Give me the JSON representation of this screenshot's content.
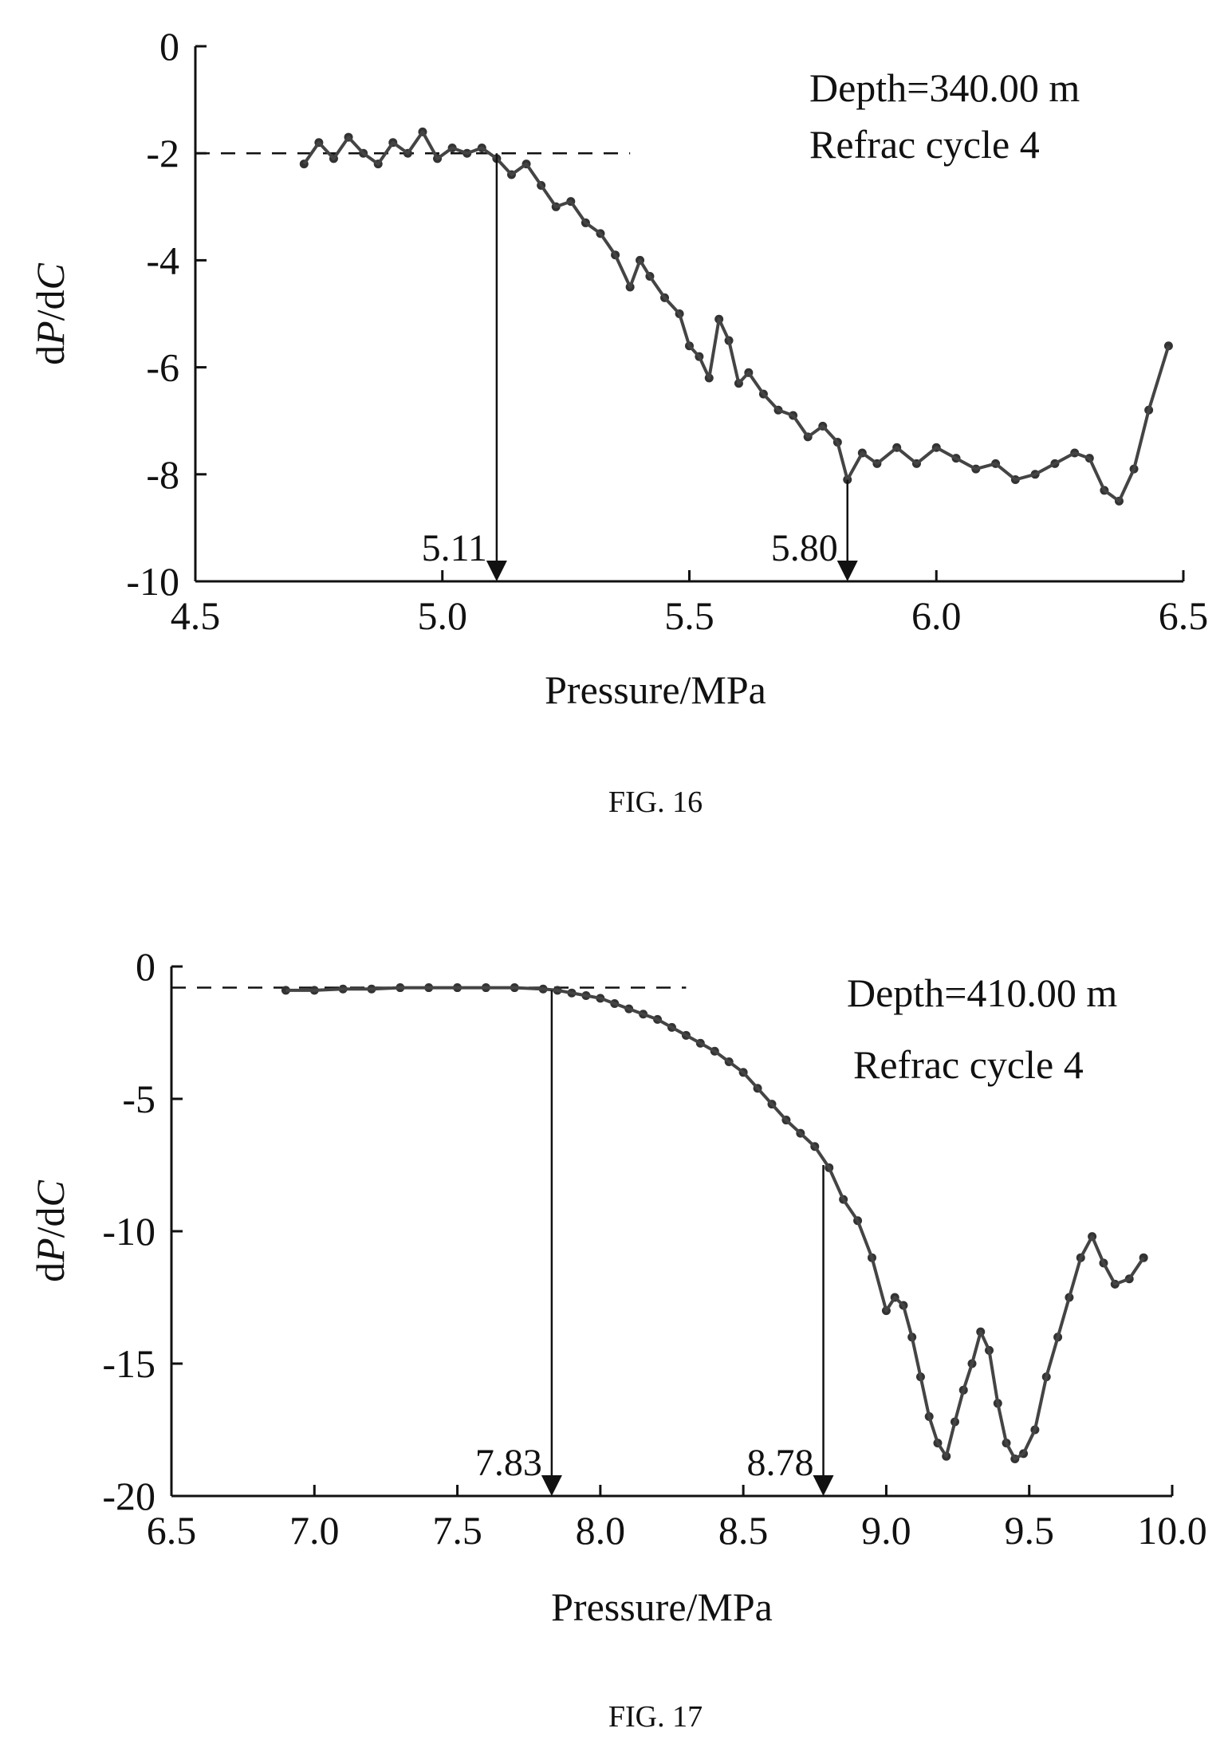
{
  "chart_data": [
    {
      "type": "scatter",
      "caption": "FIG. 16",
      "xlabel": "Pressure/MPa",
      "ylabel_parts": {
        "d1": "d",
        "p": "P",
        "slash": "/d",
        "c": "C"
      },
      "xlim": [
        4.5,
        6.5
      ],
      "ylim": [
        -10,
        0
      ],
      "xticks": [
        4.5,
        5.0,
        5.5,
        6.0,
        6.5
      ],
      "xtick_labels": [
        "4.5",
        "5.0",
        "5.5",
        "6.0",
        "6.5"
      ],
      "yticks": [
        0,
        -2,
        -4,
        -6,
        -8,
        -10
      ],
      "ytick_labels": [
        "0",
        "-2",
        "-4",
        "-6",
        "-8",
        "-10"
      ],
      "annotations": [
        "Depth=340.00 m",
        "Refrac cycle 4"
      ],
      "reference_line": {
        "y": -2,
        "x_from": 4.5,
        "x_to": 5.38
      },
      "markers": [
        {
          "x": 5.11,
          "y_top": -2.0,
          "label": "5.11"
        },
        {
          "x": 5.82,
          "y_top": -8.1,
          "label": "5.80"
        }
      ],
      "series": [
        {
          "x": [
            4.72,
            4.75,
            4.78,
            4.81,
            4.84,
            4.87,
            4.9,
            4.93,
            4.96,
            4.99,
            5.02,
            5.05,
            5.08,
            5.11,
            5.14,
            5.17,
            5.2,
            5.23,
            5.26,
            5.29,
            5.32,
            5.35,
            5.38,
            5.4,
            5.42,
            5.45,
            5.48,
            5.5,
            5.52,
            5.54,
            5.56,
            5.58,
            5.6,
            5.62,
            5.65,
            5.68,
            5.71,
            5.74,
            5.77,
            5.8,
            5.82,
            5.85,
            5.88,
            5.92,
            5.96,
            6.0,
            6.04,
            6.08,
            6.12,
            6.16,
            6.2,
            6.24,
            6.28,
            6.31,
            6.34,
            6.37,
            6.4,
            6.43,
            6.47
          ],
          "y": [
            -2.2,
            -1.8,
            -2.1,
            -1.7,
            -2.0,
            -2.2,
            -1.8,
            -2.0,
            -1.6,
            -2.1,
            -1.9,
            -2.0,
            -1.9,
            -2.1,
            -2.4,
            -2.2,
            -2.6,
            -3.0,
            -2.9,
            -3.3,
            -3.5,
            -3.9,
            -4.5,
            -4.0,
            -4.3,
            -4.7,
            -5.0,
            -5.6,
            -5.8,
            -6.2,
            -5.1,
            -5.5,
            -6.3,
            -6.1,
            -6.5,
            -6.8,
            -6.9,
            -7.3,
            -7.1,
            -7.4,
            -8.1,
            -7.6,
            -7.8,
            -7.5,
            -7.8,
            -7.5,
            -7.7,
            -7.9,
            -7.8,
            -8.1,
            -8.0,
            -7.8,
            -7.6,
            -7.7,
            -8.3,
            -8.5,
            -7.9,
            -6.8,
            -5.6
          ]
        }
      ]
    },
    {
      "type": "scatter",
      "caption": "FIG. 17",
      "xlabel": "Pressure/MPa",
      "ylabel_parts": {
        "d1": "d",
        "p": "P",
        "slash": "/d",
        "c": "C"
      },
      "xlim": [
        6.5,
        10.0
      ],
      "ylim": [
        -20,
        0
      ],
      "xticks": [
        6.5,
        7.0,
        7.5,
        8.0,
        8.5,
        9.0,
        9.5,
        10.0
      ],
      "xtick_labels": [
        "6.5",
        "7.0",
        "7.5",
        "8.0",
        "8.5",
        "9.0",
        "9.5",
        "10.0"
      ],
      "yticks": [
        0,
        -5,
        -10,
        -15,
        -20
      ],
      "ytick_labels": [
        "0",
        "-5",
        "-10",
        "-15",
        "-20"
      ],
      "annotations": [
        "Depth=410.00 m",
        "Refrac cycle 4"
      ],
      "reference_line": {
        "y": -0.8,
        "x_from": 6.5,
        "x_to": 8.3
      },
      "markers": [
        {
          "x": 7.83,
          "y_top": -0.9,
          "label": "7.83"
        },
        {
          "x": 8.78,
          "y_top": -7.5,
          "label": "8.78"
        }
      ],
      "series": [
        {
          "x": [
            6.9,
            7.0,
            7.1,
            7.2,
            7.3,
            7.4,
            7.5,
            7.6,
            7.7,
            7.8,
            7.85,
            7.9,
            7.95,
            8.0,
            8.05,
            8.1,
            8.15,
            8.2,
            8.25,
            8.3,
            8.35,
            8.4,
            8.45,
            8.5,
            8.55,
            8.6,
            8.65,
            8.7,
            8.75,
            8.8,
            8.85,
            8.9,
            8.95,
            9.0,
            9.03,
            9.06,
            9.09,
            9.12,
            9.15,
            9.18,
            9.21,
            9.24,
            9.27,
            9.3,
            9.33,
            9.36,
            9.39,
            9.42,
            9.45,
            9.48,
            9.52,
            9.56,
            9.6,
            9.64,
            9.68,
            9.72,
            9.76,
            9.8,
            9.85,
            9.9
          ],
          "y": [
            -0.9,
            -0.9,
            -0.85,
            -0.85,
            -0.8,
            -0.8,
            -0.8,
            -0.8,
            -0.8,
            -0.85,
            -0.9,
            -1.0,
            -1.1,
            -1.2,
            -1.4,
            -1.6,
            -1.8,
            -2.0,
            -2.3,
            -2.6,
            -2.9,
            -3.2,
            -3.6,
            -4.0,
            -4.6,
            -5.2,
            -5.8,
            -6.3,
            -6.8,
            -7.6,
            -8.8,
            -9.6,
            -11.0,
            -13.0,
            -12.5,
            -12.8,
            -14.0,
            -15.5,
            -17.0,
            -18.0,
            -18.5,
            -17.2,
            -16.0,
            -15.0,
            -13.8,
            -14.5,
            -16.5,
            -18.0,
            -18.6,
            -18.4,
            -17.5,
            -15.5,
            -14.0,
            -12.5,
            -11.0,
            -10.2,
            -11.2,
            -12.0,
            -11.8,
            -11.0
          ]
        }
      ]
    }
  ]
}
